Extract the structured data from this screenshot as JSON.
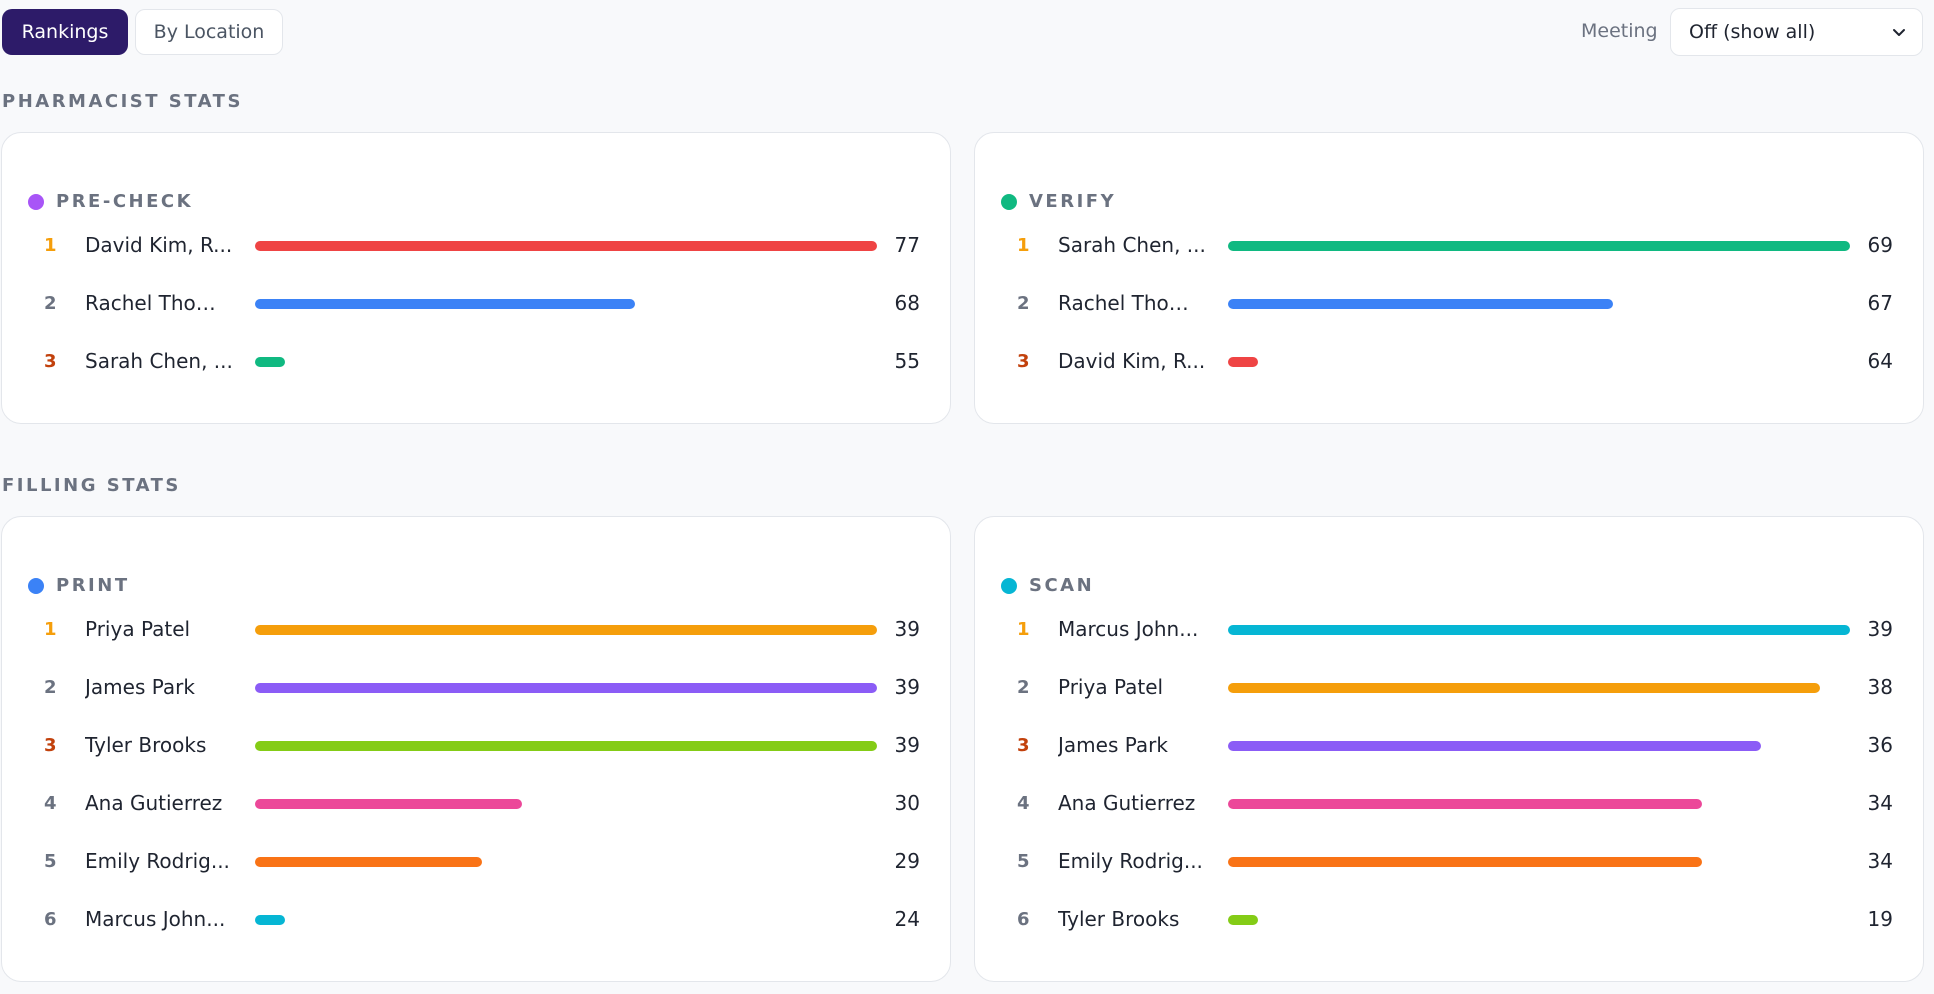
{
  "tabs": [
    {
      "label": "Rankings",
      "active": true
    },
    {
      "label": "By Location",
      "active": false
    }
  ],
  "meeting": {
    "label": "Meeting",
    "value": "Off (show all)"
  },
  "sections": [
    {
      "title": "PHARMACIST STATS",
      "cards": [
        {
          "title": "PRE-CHECK",
          "dot_color": "#a855f7",
          "max": 77,
          "min": 55,
          "rows": [
            {
              "rank": "1",
              "name": "David Kim, R...",
              "value": 77,
              "color": "#ef4444"
            },
            {
              "rank": "2",
              "name": "Rachel Thom...",
              "value": 68,
              "color": "#3b82f6"
            },
            {
              "rank": "3",
              "name": "Sarah Chen, ...",
              "value": 55,
              "color": "#10b981"
            }
          ]
        },
        {
          "title": "VERIFY",
          "dot_color": "#10b981",
          "max": 69,
          "min": 64,
          "rows": [
            {
              "rank": "1",
              "name": "Sarah Chen, ...",
              "value": 69,
              "color": "#10b981"
            },
            {
              "rank": "2",
              "name": "Rachel Thom...",
              "value": 67,
              "color": "#3b82f6"
            },
            {
              "rank": "3",
              "name": "David Kim, R...",
              "value": 64,
              "color": "#ef4444"
            }
          ]
        }
      ]
    },
    {
      "title": "FILLING STATS",
      "cards": [
        {
          "title": "PRINT",
          "dot_color": "#3b82f6",
          "max": 39,
          "min": 24,
          "rows": [
            {
              "rank": "1",
              "name": "Priya Patel",
              "value": 39,
              "color": "#f59e0b"
            },
            {
              "rank": "2",
              "name": "James Park",
              "value": 39,
              "color": "#8b5cf6"
            },
            {
              "rank": "3",
              "name": "Tyler Brooks",
              "value": 39,
              "color": "#84cc16"
            },
            {
              "rank": "4",
              "name": "Ana Gutierrez",
              "value": 30,
              "color": "#ec4899"
            },
            {
              "rank": "5",
              "name": "Emily Rodrig...",
              "value": 29,
              "color": "#f97316"
            },
            {
              "rank": "6",
              "name": "Marcus John...",
              "value": 24,
              "color": "#06b6d4"
            }
          ]
        },
        {
          "title": "SCAN",
          "dot_color": "#06b6d4",
          "max": 39,
          "min": 19,
          "rows": [
            {
              "rank": "1",
              "name": "Marcus John...",
              "value": 39,
              "color": "#06b6d4"
            },
            {
              "rank": "2",
              "name": "Priya Patel",
              "value": 38,
              "color": "#f59e0b"
            },
            {
              "rank": "3",
              "name": "James Park",
              "value": 36,
              "color": "#8b5cf6"
            },
            {
              "rank": "4",
              "name": "Ana Gutierrez",
              "value": 34,
              "color": "#ec4899"
            },
            {
              "rank": "5",
              "name": "Emily Rodrig...",
              "value": 34,
              "color": "#f97316"
            },
            {
              "rank": "6",
              "name": "Tyler Brooks",
              "value": 19,
              "color": "#84cc16"
            }
          ]
        }
      ]
    }
  ]
}
